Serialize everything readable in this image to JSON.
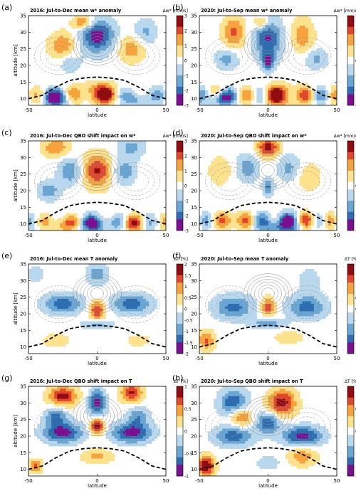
{
  "figure": {
    "type": "heatmap",
    "panels": [
      {
        "tag": "(a)",
        "title": "2016:  Jul-to-Dec mean w* anomaly",
        "cbar_label": "Δw* [mm/s]",
        "cbar_ticks": [
          "3",
          "2",
          "1",
          "0",
          "-1",
          "-2",
          "-3"
        ],
        "scale": "w",
        "cmin": -3,
        "cmax": 3,
        "pattern": "w_a"
      },
      {
        "tag": "(b)",
        "title": "2020:  Jul-to-Sep mean w* anomaly",
        "cbar_label": "Δw* [mm/s]",
        "cbar_ticks": [
          "3",
          "2",
          "1",
          "0",
          "-1",
          "-2",
          "-3"
        ],
        "scale": "w",
        "cmin": -3,
        "cmax": 3,
        "pattern": "w_b"
      },
      {
        "tag": "(c)",
        "title": "2016:  Jul-to-Dec QBO shift impact on w*",
        "cbar_label": "Δw* [mm/s]",
        "cbar_ticks": [
          "3",
          "2",
          "1",
          "0",
          "-1",
          "-2",
          "-3"
        ],
        "scale": "w",
        "cmin": -3,
        "cmax": 3,
        "pattern": "w_c"
      },
      {
        "tag": "(d)",
        "title": "2020:  Jul-to-Sep QBO shift impact on w*",
        "cbar_label": "Δw* [mm/s]",
        "cbar_ticks": [
          "3",
          "2",
          "1",
          "0",
          "-1",
          "-2",
          "-3"
        ],
        "scale": "w",
        "cmin": -3,
        "cmax": 3,
        "pattern": "w_d"
      },
      {
        "tag": "(e)",
        "title": "2016:  Jul-to-Dec mean T anomaly",
        "cbar_label": "ΔT [%]",
        "cbar_ticks": [
          "2",
          "1.5",
          "1",
          "0.5",
          "0",
          "-0.5",
          "-1",
          "-1.5",
          "-2"
        ],
        "scale": "t",
        "cmin": -2,
        "cmax": 2,
        "pattern": "t_e"
      },
      {
        "tag": "(f)",
        "title": "2020:  Jul-to-Sep mean T anomaly",
        "cbar_label": "ΔT [%]",
        "cbar_ticks": [
          "2",
          "1.5",
          "1",
          "0.5",
          "0",
          "-0.5",
          "-1",
          "-1.5",
          "-2"
        ],
        "scale": "t",
        "cmin": -2,
        "cmax": 2,
        "pattern": "t_f"
      },
      {
        "tag": "(g)",
        "title": "2016:  Jul-to-Dec QBO shift impact on T",
        "cbar_label": "ΔT [%]",
        "cbar_ticks": [
          "1",
          "0.5",
          "0",
          "-0.5",
          "-1"
        ],
        "scale": "t",
        "cmin": -1,
        "cmax": 1,
        "pattern": "t_g"
      },
      {
        "tag": "(h)",
        "title": "2020:  Jul-to-Sep QBO shift impact on T",
        "cbar_label": "ΔT [%]",
        "cbar_ticks": [
          "1",
          "0.5",
          "0",
          "-0.5",
          "-1"
        ],
        "scale": "t",
        "cmin": -1,
        "cmax": 1,
        "pattern": "t_h"
      }
    ]
  },
  "chart_data": {
    "type": "heatmap",
    "xlabel": "latitude",
    "ylabel": "altitude [km]",
    "xlim": [
      -50,
      50
    ],
    "ylim": [
      8,
      35
    ],
    "x_ticks": [
      "-50",
      "0",
      "50"
    ],
    "y_ticks": [
      "35",
      "30",
      "25",
      "20",
      "15",
      "10"
    ],
    "y_tick_values": [
      35,
      30,
      25,
      20,
      15,
      10
    ],
    "tropopause_line": {
      "style": "black dashed",
      "lat": [
        -50,
        -40,
        -30,
        -20,
        -10,
        0,
        10,
        20,
        30,
        40,
        50
      ],
      "alt": [
        10,
        11,
        13.5,
        15.5,
        16.2,
        16.5,
        16.2,
        15.5,
        13.5,
        11,
        10
      ]
    },
    "w_colors": [
      "#7b0f8f",
      "#2f6db1",
      "#6aa6d4",
      "#b9d8ee",
      "#ffffff",
      "#fde28e",
      "#f6a23d",
      "#e0462c",
      "#8f0c10"
    ],
    "t_colors": [
      "#7b0f8f",
      "#2f6db1",
      "#6aa6d4",
      "#b9d8ee",
      "#ffffff",
      "#fde28e",
      "#f6a23d",
      "#e0462c",
      "#8f0c10"
    ]
  }
}
